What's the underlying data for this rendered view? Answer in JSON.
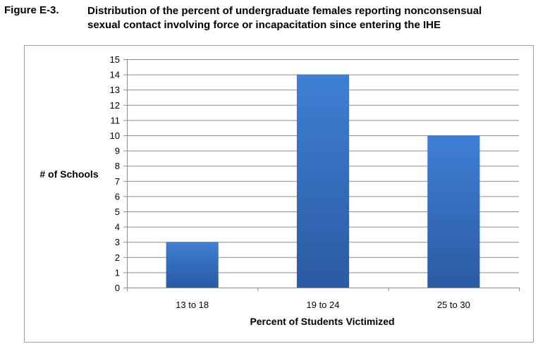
{
  "figure": {
    "label": "Figure E-3.",
    "title_line1": "Distribution of the percent of undergraduate females reporting nonconsensual",
    "title_line2": "sexual contact involving force or incapacitation since entering the IHE"
  },
  "chart_data": {
    "type": "bar",
    "categories": [
      "13 to 18",
      "19 to 24",
      "25 to 30"
    ],
    "values": [
      3,
      14,
      10
    ],
    "xlabel": "Percent of Students Victimized",
    "ylabel": "# of Schools",
    "ylim": [
      0,
      15
    ],
    "yticks": [
      0,
      1,
      2,
      3,
      4,
      5,
      6,
      7,
      8,
      9,
      10,
      11,
      12,
      13,
      14,
      15
    ],
    "grid": true,
    "legend": "none",
    "bar_color_top": "#3f7fd4",
    "bar_color_bottom": "#2a5ba3",
    "grid_color": "#8c8c8c"
  }
}
